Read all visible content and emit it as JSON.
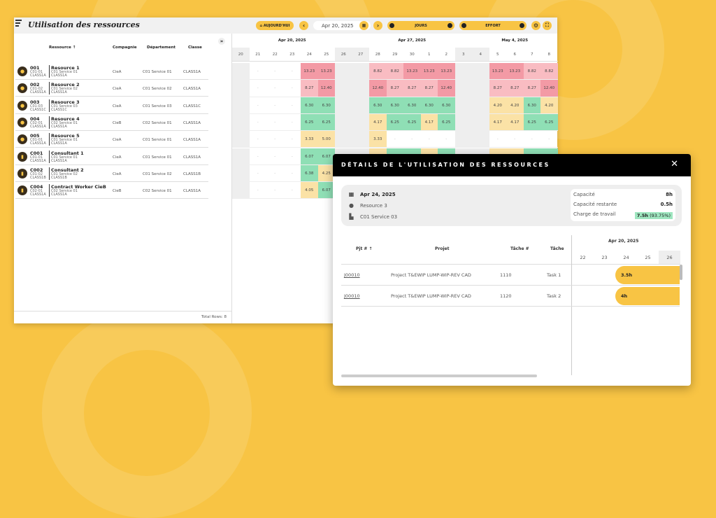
{
  "app": {
    "title": "Utilisation des ressources"
  },
  "toolbar": {
    "today": "AUJOURD'HUI",
    "date": "Apr 20, 2025",
    "view": "JOURS",
    "mode": "EFFORT"
  },
  "left": {
    "headers": {
      "resource": "Ressource ↑",
      "company": "Compagnie",
      "department": "Département",
      "class": "Classe"
    },
    "rows": [
      {
        "id": "001",
        "code": "C01-01",
        "cls": "CLASS1A",
        "name": "Resource 1",
        "dept": "C01 Service 01",
        "company": "CieA",
        "department": "C01 Service 01",
        "classe": "CLASS1A",
        "type": "person"
      },
      {
        "id": "002",
        "code": "C01-02",
        "cls": "CLASS1A",
        "name": "Resource 2",
        "dept": "C01 Service 02",
        "company": "CieA",
        "department": "C01 Service 02",
        "classe": "CLASS1A",
        "type": "person"
      },
      {
        "id": "003",
        "code": "C01-03",
        "cls": "CLASS1C",
        "name": "Resource 3",
        "dept": "C01 Service 03",
        "company": "CieA",
        "department": "C01 Service 03",
        "classe": "CLASS1C",
        "type": "person"
      },
      {
        "id": "004",
        "code": "C02-01",
        "cls": "CLASS1A",
        "name": "Resource 4",
        "dept": "C02 Service 01",
        "company": "CieB",
        "department": "C02 Service 01",
        "classe": "CLASS1A",
        "type": "person"
      },
      {
        "id": "005",
        "code": "C01-01",
        "cls": "CLASS1A",
        "name": "Resource 5",
        "dept": "C01 Service 01",
        "company": "CieA",
        "department": "C01 Service 01",
        "classe": "CLASS1A",
        "type": "person"
      },
      {
        "id": "C001",
        "code": "C01-01",
        "cls": "CLASS1A",
        "name": "Consultant 1",
        "dept": "C01 Service 01",
        "company": "CieA",
        "department": "C01 Service 01",
        "classe": "CLASS1A",
        "type": "badge"
      },
      {
        "id": "C002",
        "code": "C01-02",
        "cls": "CLASS1B",
        "name": "Consultant 2",
        "dept": "C01 Service 02",
        "company": "CieA",
        "department": "C01 Service 02",
        "classe": "CLASS1B",
        "type": "badge"
      },
      {
        "id": "C004",
        "code": "C02-01",
        "cls": "CLASS1A",
        "name": "Contract Worker CieB",
        "dept": "C02 Service 01",
        "company": "CieB",
        "department": "C02 Service 01",
        "classe": "CLASS1A",
        "type": "badge"
      }
    ],
    "total": "Total Rows: 8"
  },
  "grid": {
    "weeks": [
      "Apr 20, 2025",
      "Apr 27, 2025",
      "May 4, 2025"
    ],
    "days": [
      "20",
      "21",
      "22",
      "23",
      "24",
      "25",
      "26",
      "27",
      "28",
      "29",
      "30",
      "1",
      "2",
      "3",
      "4",
      "5",
      "6",
      "7",
      "8"
    ],
    "weekend": [
      0,
      6,
      7,
      13,
      14
    ],
    "rows": [
      [
        [
          "",
          "w"
        ],
        [
          "-",
          "d"
        ],
        [
          "-",
          "d"
        ],
        [
          "-",
          "d"
        ],
        [
          "13.23",
          "R"
        ],
        [
          "13.23",
          "R"
        ],
        [
          "",
          "w"
        ],
        [
          "",
          "w"
        ],
        [
          "8.82",
          "p"
        ],
        [
          "8.82",
          "p"
        ],
        [
          "13.23",
          "R"
        ],
        [
          "13.23",
          "R"
        ],
        [
          "13.23",
          "R"
        ],
        [
          "",
          "w"
        ],
        [
          "",
          "w"
        ],
        [
          "13.23",
          "R"
        ],
        [
          "13.23",
          "R"
        ],
        [
          "8.82",
          "p"
        ],
        [
          "8.82",
          "p"
        ]
      ],
      [
        [
          "",
          "w"
        ],
        [
          "-",
          "d"
        ],
        [
          "-",
          "d"
        ],
        [
          "-",
          "d"
        ],
        [
          "8.27",
          "p"
        ],
        [
          "12.40",
          "R"
        ],
        [
          "",
          "w"
        ],
        [
          "",
          "w"
        ],
        [
          "12.40",
          "R"
        ],
        [
          "8.27",
          "p"
        ],
        [
          "8.27",
          "p"
        ],
        [
          "8.27",
          "p"
        ],
        [
          "12.40",
          "R"
        ],
        [
          "",
          "w"
        ],
        [
          "",
          "w"
        ],
        [
          "8.27",
          "p"
        ],
        [
          "8.27",
          "p"
        ],
        [
          "8.27",
          "p"
        ],
        [
          "12.40",
          "R"
        ]
      ],
      [
        [
          "",
          "w"
        ],
        [
          "-",
          "d"
        ],
        [
          "-",
          "d"
        ],
        [
          "-",
          "d"
        ],
        [
          "6.30",
          "g"
        ],
        [
          "6.30",
          "g"
        ],
        [
          "",
          "w"
        ],
        [
          "",
          "w"
        ],
        [
          "6.30",
          "g"
        ],
        [
          "6.30",
          "g"
        ],
        [
          "6.30",
          "g"
        ],
        [
          "6.30",
          "g"
        ],
        [
          "6.30",
          "g"
        ],
        [
          "",
          "w"
        ],
        [
          "",
          "w"
        ],
        [
          "4.20",
          "y"
        ],
        [
          "4.20",
          "y"
        ],
        [
          "6.30",
          "g"
        ],
        [
          "4.20",
          "y"
        ]
      ],
      [
        [
          "",
          "w"
        ],
        [
          "-",
          "d"
        ],
        [
          "-",
          "d"
        ],
        [
          "-",
          "d"
        ],
        [
          "6.25",
          "g"
        ],
        [
          "6.25",
          "g"
        ],
        [
          "",
          "w"
        ],
        [
          "",
          "w"
        ],
        [
          "4.17",
          "y"
        ],
        [
          "6.25",
          "g"
        ],
        [
          "6.25",
          "g"
        ],
        [
          "4.17",
          "y"
        ],
        [
          "6.25",
          "g"
        ],
        [
          "",
          "w"
        ],
        [
          "",
          "w"
        ],
        [
          "4.17",
          "y"
        ],
        [
          "4.17",
          "y"
        ],
        [
          "6.25",
          "g"
        ],
        [
          "6.25",
          "g"
        ]
      ],
      [
        [
          "",
          "w"
        ],
        [
          "-",
          "d"
        ],
        [
          "-",
          "d"
        ],
        [
          "-",
          "d"
        ],
        [
          "3.33",
          "y"
        ],
        [
          "5.00",
          "y"
        ],
        [
          "",
          "w"
        ],
        [
          "",
          "w"
        ],
        [
          "3.33",
          "y"
        ],
        [
          "-",
          "d"
        ],
        [
          "-",
          "d"
        ],
        [
          "-",
          "d"
        ],
        [
          "-",
          "d"
        ],
        [
          "",
          "w"
        ],
        [
          "",
          "w"
        ],
        [
          "-",
          "d"
        ],
        [
          "-",
          "d"
        ],
        [
          "-",
          "d"
        ],
        [
          "-",
          "d"
        ]
      ],
      [
        [
          "",
          "w"
        ],
        [
          "-",
          "d"
        ],
        [
          "-",
          "d"
        ],
        [
          "-",
          "d"
        ],
        [
          "6.07",
          "g"
        ],
        [
          "6.07",
          "g"
        ],
        [
          "",
          "w"
        ],
        [
          "",
          "w"
        ],
        [
          "",
          "y"
        ],
        [
          "",
          "g"
        ],
        [
          "",
          "g"
        ],
        [
          "",
          "y"
        ],
        [
          "",
          "g"
        ],
        [
          "",
          "w"
        ],
        [
          "",
          "w"
        ],
        [
          "",
          "y"
        ],
        [
          "",
          "y"
        ],
        [
          "",
          "g"
        ],
        [
          "",
          "g"
        ]
      ],
      [
        [
          "",
          "w"
        ],
        [
          "-",
          "d"
        ],
        [
          "-",
          "d"
        ],
        [
          "-",
          "d"
        ],
        [
          "6.38",
          "g"
        ],
        [
          "4.25",
          "y"
        ],
        [
          "",
          "w"
        ],
        [
          "",
          "w"
        ],
        [
          "",
          "y"
        ],
        [
          "",
          "g"
        ],
        [
          "",
          "g"
        ],
        [
          "",
          "y"
        ],
        [
          "",
          "g"
        ],
        [
          "",
          "w"
        ],
        [
          "",
          "w"
        ],
        [
          "",
          "y"
        ],
        [
          "",
          "y"
        ],
        [
          "",
          "g"
        ],
        [
          "",
          "g"
        ]
      ],
      [
        [
          "",
          "w"
        ],
        [
          "-",
          "d"
        ],
        [
          "-",
          "d"
        ],
        [
          "-",
          "d"
        ],
        [
          "4.05",
          "y"
        ],
        [
          "6.07",
          "g"
        ],
        [
          "",
          "w"
        ],
        [
          "",
          "w"
        ],
        [
          "",
          "y"
        ],
        [
          "",
          "g"
        ],
        [
          "",
          "g"
        ],
        [
          "",
          "y"
        ],
        [
          "",
          "g"
        ],
        [
          "",
          "w"
        ],
        [
          "",
          "w"
        ],
        [
          "",
          "y"
        ],
        [
          "",
          "y"
        ],
        [
          "",
          "g"
        ],
        [
          "",
          "g"
        ]
      ]
    ]
  },
  "modal": {
    "title": "DÉTAILS DE L'UTILISATION DES RESSOURCES",
    "date": "Apr 24, 2025",
    "resource": "Resource 3",
    "department": "C01 Service 03",
    "stats": {
      "capacity_label": "Capacité",
      "capacity": "8h",
      "remaining_label": "Capacité restante",
      "remaining": "0.5h",
      "workload_label": "Charge de travail",
      "workload": "7.5h",
      "workload_pct": "(93.75%)"
    },
    "headers": {
      "pjt": "Pjt # ↑",
      "projet": "Projet",
      "tache_no": "Tâche #",
      "tache": "Tâche"
    },
    "week": "Apr 20, 2025",
    "days": [
      "22",
      "23",
      "24",
      "25",
      "26"
    ],
    "rows": [
      {
        "pjt": "J00010",
        "projet": "Project T&EWIP LUMP-WIP-REV CAD",
        "tache_no": "1110",
        "tache": "Task 1",
        "hours": "3.5h"
      },
      {
        "pjt": "J00010",
        "projet": "Project T&EWIP LUMP-WIP-REV CAD",
        "tache_no": "1120",
        "tache": "Task 2",
        "hours": "4h"
      }
    ]
  },
  "colors": {
    "accent": "#f8c444",
    "over": "#f39aa5",
    "high": "#f9bcc2",
    "ok": "#8fdfb5",
    "under": "#fbe2a6"
  }
}
